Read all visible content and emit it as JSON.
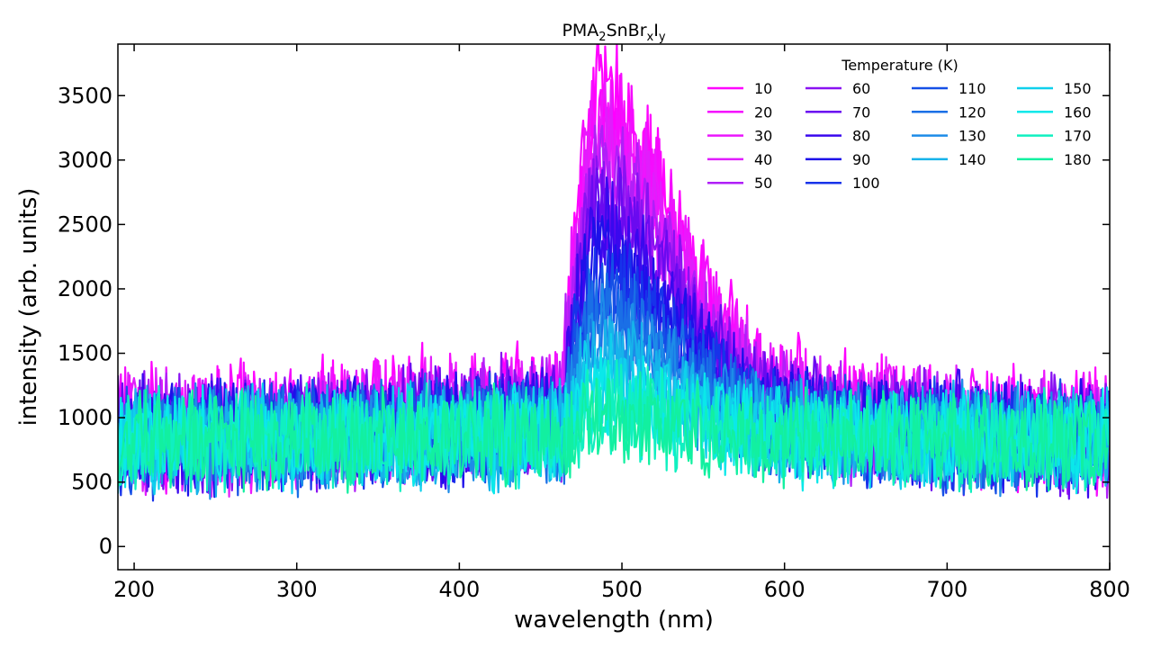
{
  "chart_data": {
    "type": "line",
    "title": {
      "main": "PMA",
      "sub1": "2",
      "mid1": "SnBr",
      "sub2": "x",
      "mid2": "I",
      "sub3": "y"
    },
    "xlabel": "wavelength (nm)",
    "ylabel": "intensity (arb. units)",
    "xlim": [
      190,
      800
    ],
    "ylim": [
      -180,
      3900
    ],
    "xticks": [
      200,
      300,
      400,
      500,
      600,
      700,
      800
    ],
    "yticks": [
      0,
      500,
      1000,
      1500,
      2000,
      2500,
      3000,
      3500
    ],
    "grid": false,
    "legend": {
      "title": "Temperature (K)",
      "placement": "top-right",
      "columns": 4
    },
    "peak_wavelength": 485,
    "series": [
      {
        "name": "10",
        "color": "#ff00ff",
        "baseline": 900,
        "peak": 2350,
        "noise": 420
      },
      {
        "name": "20",
        "color": "#f50cfe",
        "baseline": 890,
        "peak": 2250,
        "noise": 420
      },
      {
        "name": "30",
        "color": "#eb17fd",
        "baseline": 880,
        "peak": 2150,
        "noise": 410
      },
      {
        "name": "40",
        "color": "#e01efc",
        "baseline": 870,
        "peak": 2050,
        "noise": 410
      },
      {
        "name": "50",
        "color": "#b01ff8",
        "baseline": 860,
        "peak": 1900,
        "noise": 400
      },
      {
        "name": "60",
        "color": "#8a12f2",
        "baseline": 850,
        "peak": 1750,
        "noise": 400
      },
      {
        "name": "70",
        "color": "#6a0af0",
        "baseline": 850,
        "peak": 1600,
        "noise": 390
      },
      {
        "name": "80",
        "color": "#3a08ee",
        "baseline": 840,
        "peak": 1450,
        "noise": 390
      },
      {
        "name": "90",
        "color": "#1d10ea",
        "baseline": 840,
        "peak": 1300,
        "noise": 380
      },
      {
        "name": "100",
        "color": "#1733ea",
        "baseline": 830,
        "peak": 1150,
        "noise": 380
      },
      {
        "name": "110",
        "color": "#1550e6",
        "baseline": 830,
        "peak": 1000,
        "noise": 370
      },
      {
        "name": "120",
        "color": "#1a6fe6",
        "baseline": 820,
        "peak": 850,
        "noise": 370
      },
      {
        "name": "130",
        "color": "#1d8ce8",
        "baseline": 820,
        "peak": 700,
        "noise": 360
      },
      {
        "name": "140",
        "color": "#16b3ea",
        "baseline": 820,
        "peak": 560,
        "noise": 360
      },
      {
        "name": "150",
        "color": "#0fd0ec",
        "baseline": 820,
        "peak": 420,
        "noise": 350
      },
      {
        "name": "160",
        "color": "#0ae8ea",
        "baseline": 820,
        "peak": 300,
        "noise": 350
      },
      {
        "name": "170",
        "color": "#10f0c0",
        "baseline": 820,
        "peak": 200,
        "noise": 340
      },
      {
        "name": "180",
        "color": "#12f0a0",
        "baseline": 830,
        "peak": 120,
        "noise": 340
      }
    ]
  }
}
